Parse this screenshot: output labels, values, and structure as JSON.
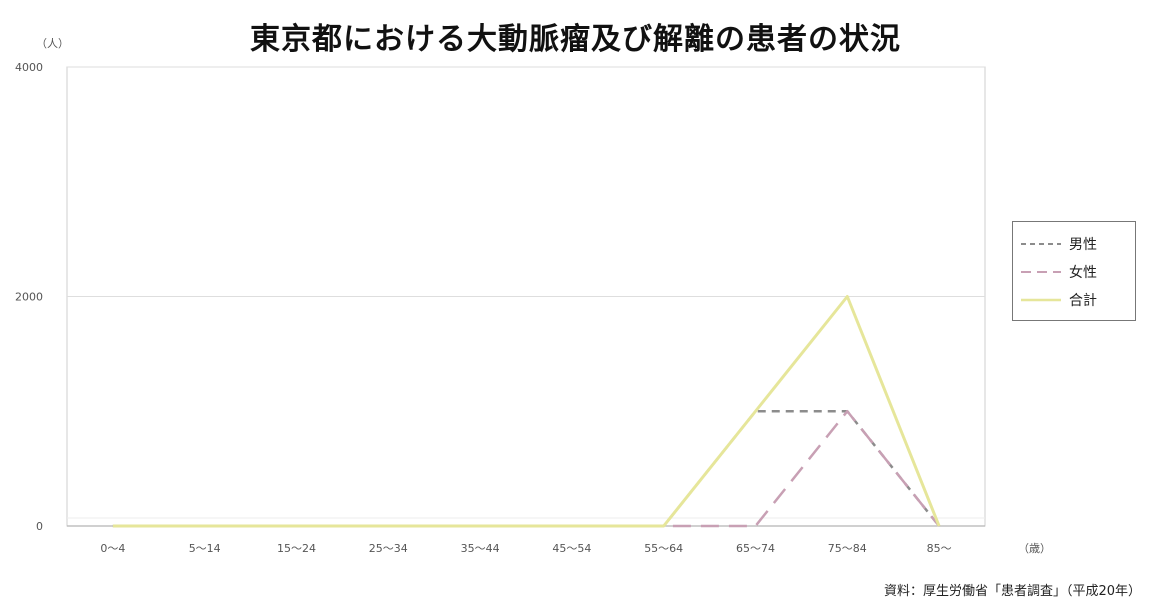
{
  "chart_data": {
    "type": "line",
    "title": "東京都における大動脈瘤及び解離の患者の状況",
    "ylabel": "（人）",
    "xlabel": "（歳）",
    "ylim": [
      0,
      4000
    ],
    "y_ticks": [
      "4000",
      "2000",
      "0"
    ],
    "categories": [
      "0〜4",
      "5〜14",
      "15〜24",
      "25〜34",
      "35〜44",
      "45〜54",
      "55〜64",
      "65〜74",
      "75〜84",
      "85〜"
    ],
    "series": [
      {
        "name": "男性",
        "color": "#8c8c8c",
        "dash": "dashed",
        "values": [
          0,
          0,
          0,
          0,
          0,
          0,
          0,
          1000,
          1000,
          0
        ]
      },
      {
        "name": "女性",
        "color": "#c8a0b4",
        "dash": "long-dash",
        "values": [
          0,
          0,
          0,
          0,
          0,
          0,
          0,
          0,
          1000,
          0
        ]
      },
      {
        "name": "合計",
        "color": "#e6e69a",
        "dash": "solid",
        "values": [
          0,
          0,
          0,
          0,
          0,
          0,
          0,
          1000,
          2000,
          0
        ]
      }
    ],
    "legend_position": "right",
    "grid": true,
    "source": "資料：厚生労働省「患者調査」（平成20年）"
  }
}
